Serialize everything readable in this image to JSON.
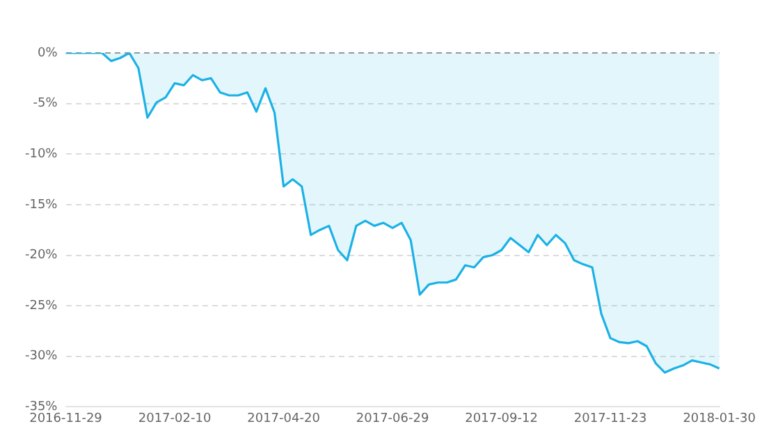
{
  "chart_data": {
    "type": "area",
    "categories": [
      "2016-11-29",
      null,
      null,
      null,
      null,
      null,
      null,
      null,
      null,
      null,
      null,
      null,
      "2017-02-10",
      null,
      null,
      null,
      null,
      null,
      null,
      null,
      null,
      null,
      null,
      null,
      "2017-04-20",
      null,
      null,
      null,
      null,
      null,
      null,
      null,
      null,
      null,
      null,
      null,
      "2017-06-29",
      null,
      null,
      null,
      null,
      null,
      null,
      null,
      null,
      null,
      null,
      null,
      "2017-09-12",
      null,
      null,
      null,
      null,
      null,
      null,
      null,
      null,
      null,
      null,
      null,
      "2017-11-23",
      null,
      null,
      null,
      null,
      null,
      null,
      null,
      null,
      null,
      null,
      null,
      "2018-01-30"
    ],
    "series": [
      {
        "color": "#1bb1e6",
        "values": [
          0,
          0,
          0,
          0,
          0,
          -0.8,
          -0.5,
          0,
          -1.5,
          -6.4,
          -4.9,
          -4.4,
          -3.0,
          -3.2,
          -2.2,
          -2.7,
          -2.5,
          -3.9,
          -4.2,
          -4.2,
          -3.9,
          -5.8,
          -3.5,
          -5.9,
          -13.2,
          -12.5,
          -13.2,
          -18.0,
          -17.5,
          -17.1,
          -19.5,
          -20.5,
          -17.1,
          -16.6,
          -17.1,
          -16.8,
          -17.3,
          -16.8,
          -18.5,
          -23.9,
          -22.9,
          -22.7,
          -22.7,
          -22.4,
          -21.0,
          -21.2,
          -20.2,
          -20.0,
          -19.5,
          -18.3,
          -19.0,
          -19.7,
          -18.0,
          -19.0,
          -18.0,
          -18.8,
          -20.5,
          -20.9,
          -21.2,
          -25.8,
          -28.2,
          -28.6,
          -28.7,
          -28.5,
          -29.0,
          -30.7,
          -31.6,
          -31.2,
          -30.9,
          -30.4,
          -30.6,
          -30.8,
          -31.2
        ]
      }
    ],
    "ylim": [
      -35,
      0
    ],
    "yticks": [
      {
        "value": 0,
        "label": "0%"
      },
      {
        "value": -5,
        "label": "-5%"
      },
      {
        "value": -10,
        "label": "-10%"
      },
      {
        "value": -15,
        "label": "-15%"
      },
      {
        "value": -20,
        "label": "-20%"
      },
      {
        "value": -25,
        "label": "-25%"
      },
      {
        "value": -30,
        "label": "-30%"
      },
      {
        "value": -35,
        "label": "-35%"
      }
    ],
    "grid": "y",
    "legend": false,
    "marker": "none",
    "line_style": "solid"
  }
}
